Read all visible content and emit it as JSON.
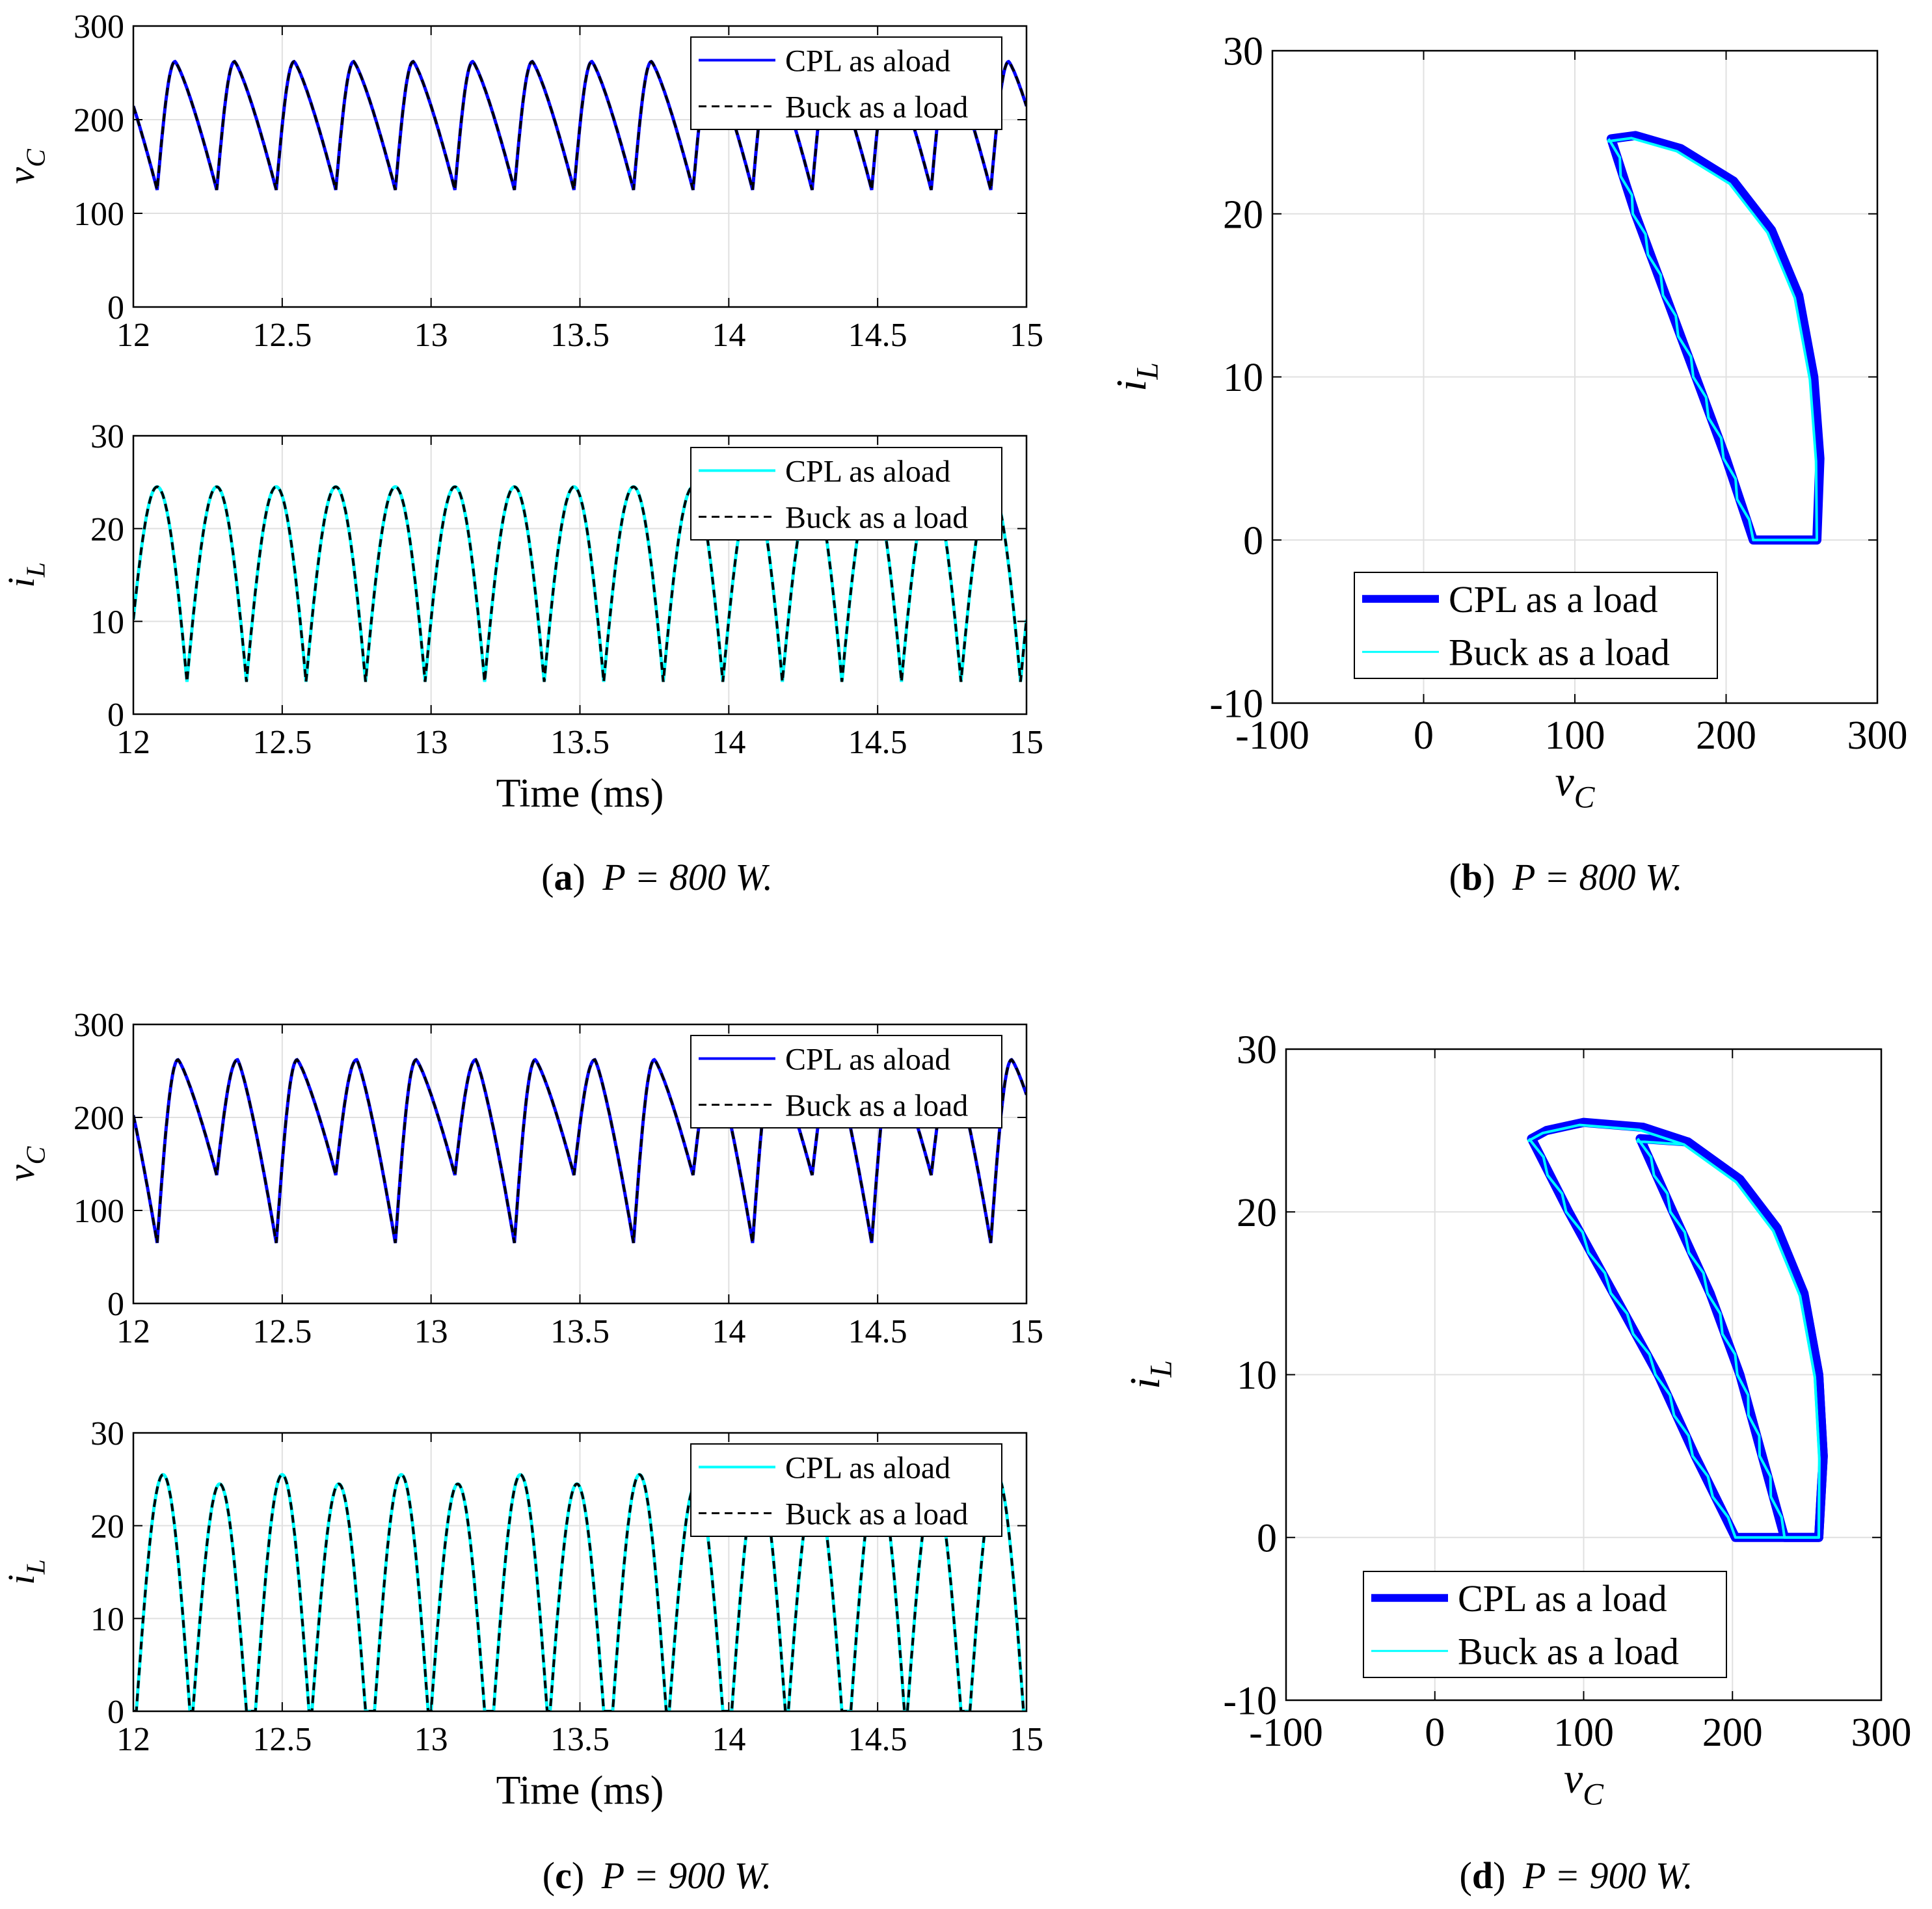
{
  "colors": {
    "blue": "#0000ff",
    "cyan": "#00ffff",
    "black": "#000000",
    "grid": "#e0e0e0",
    "axis": "#000000"
  },
  "panels": [
    {
      "label": "a",
      "caption_rest": "P = 800 W."
    },
    {
      "label": "b",
      "caption_rest": "P = 800 W."
    },
    {
      "label": "c",
      "caption_rest": "P = 900 W."
    },
    {
      "label": "d",
      "caption_rest": "P = 900 W."
    }
  ],
  "chart_data": [
    {
      "id": "a-vc",
      "panel": "a",
      "type": "line",
      "ylabel": "v_C",
      "xlabel": "",
      "xlim": [
        12,
        15
      ],
      "ylim": [
        0,
        300
      ],
      "xticks": [
        "12",
        "12.5",
        "13",
        "13.5",
        "14",
        "14.5",
        "15"
      ],
      "yticks": [
        "0",
        "100",
        "200",
        "300"
      ],
      "grid": true,
      "legend_position": "top-right",
      "waveform": {
        "kind": "vc",
        "period": 0.2,
        "tmin": 12.08,
        "min": 125,
        "max": 262,
        "t0": 12.0,
        "v0": 218,
        "rise": 0.06
      },
      "series": [
        {
          "name": "CPL as aload",
          "color": "#0000ff",
          "style": "solid"
        },
        {
          "name": "Buck  as a load",
          "color": "#000000",
          "style": "dashed"
        }
      ]
    },
    {
      "id": "a-il",
      "panel": "a",
      "type": "line",
      "ylabel": "i_L",
      "xlabel": "Time (ms)",
      "xlim": [
        12,
        15
      ],
      "ylim": [
        0,
        30
      ],
      "xticks": [
        "12",
        "12.5",
        "13",
        "13.5",
        "14",
        "14.5",
        "15"
      ],
      "yticks": [
        "0",
        "10",
        "20",
        "30"
      ],
      "grid": true,
      "legend_position": "top-right",
      "waveform": {
        "kind": "il",
        "period": 0.2,
        "tpeak": 12.08,
        "peak": 24.5,
        "half_width": 0.11
      },
      "series": [
        {
          "name": "CPL as aload",
          "color": "#00ffff",
          "style": "solid"
        },
        {
          "name": "Buck  as a load",
          "color": "#000000",
          "style": "dashed"
        }
      ]
    },
    {
      "id": "b-phase",
      "panel": "b",
      "type": "line",
      "xlabel": "v_C",
      "ylabel": "i_L",
      "xlim": [
        -100,
        300
      ],
      "ylim": [
        -10,
        30
      ],
      "xticks": [
        "-100",
        "0",
        "100",
        "200",
        "300"
      ],
      "yticks": [
        "-10",
        "0",
        "10",
        "20",
        "30"
      ],
      "grid": true,
      "legend_position": "bottom-left",
      "loops": [
        {
          "inner": [
            [
              124,
              24.6
            ],
            [
              140,
              20
            ],
            [
              160,
              15
            ],
            [
              180,
              10
            ],
            [
              200,
              5
            ],
            [
              218,
              0
            ]
          ],
          "bottom": [
            [
              218,
              0
            ],
            [
              260,
              0
            ]
          ],
          "outer": [
            [
              260,
              0
            ],
            [
              262,
              5
            ],
            [
              258,
              10
            ],
            [
              248,
              15
            ],
            [
              230,
              19
            ],
            [
              205,
              22
            ],
            [
              170,
              24
            ],
            [
              140,
              24.8
            ],
            [
              124,
              24.6
            ]
          ]
        }
      ],
      "series": [
        {
          "name": "CPL as a load",
          "color": "#0000ff",
          "style": "solid-thick"
        },
        {
          "name": "Buck  as a load",
          "color": "#00ffff",
          "style": "solid-thin"
        }
      ]
    },
    {
      "id": "c-vc",
      "panel": "c",
      "type": "line",
      "ylabel": "v_C",
      "xlabel": "",
      "xlim": [
        12,
        15
      ],
      "ylim": [
        0,
        300
      ],
      "xticks": [
        "12",
        "12.5",
        "13",
        "13.5",
        "14",
        "14.5",
        "15"
      ],
      "yticks": [
        "0",
        "100",
        "200",
        "300"
      ],
      "grid": true,
      "legend_position": "top-right",
      "waveform": {
        "kind": "vc2",
        "period": 0.4,
        "tdeep": 12.08,
        "tshallow": 12.28,
        "deep": 65,
        "shallow": 138,
        "max": 262,
        "t0": 12.0,
        "v0": 205
      },
      "series": [
        {
          "name": "CPL as aload",
          "color": "#0000ff",
          "style": "solid"
        },
        {
          "name": "Buck  as a load",
          "color": "#000000",
          "style": "dashed"
        }
      ]
    },
    {
      "id": "c-il",
      "panel": "c",
      "type": "line",
      "ylabel": "i_L",
      "xlabel": "Time (ms)",
      "xlim": [
        12,
        15
      ],
      "ylim": [
        0,
        30
      ],
      "xticks": [
        "12",
        "12.5",
        "13",
        "13.5",
        "14",
        "14.5",
        "15"
      ],
      "yticks": [
        "0",
        "10",
        "20",
        "30"
      ],
      "grid": true,
      "legend_position": "top-right",
      "waveform": {
        "kind": "il2",
        "period": 0.4,
        "tpeak1": 12.1,
        "tpeak2": 12.29,
        "peak1": 25.5,
        "peak2": 24.5,
        "half_width": 0.09
      },
      "series": [
        {
          "name": "CPL as aload",
          "color": "#00ffff",
          "style": "solid"
        },
        {
          "name": "Buck  as a load",
          "color": "#000000",
          "style": "dashed"
        }
      ]
    },
    {
      "id": "d-phase",
      "panel": "d",
      "type": "line",
      "xlabel": "v_C",
      "ylabel": "i_L",
      "xlim": [
        -100,
        300
      ],
      "ylim": [
        -10,
        30
      ],
      "xticks": [
        "-100",
        "0",
        "100",
        "200",
        "300"
      ],
      "yticks": [
        "-10",
        "0",
        "10",
        "20",
        "30"
      ],
      "grid": true,
      "legend_position": "bottom-left",
      "loops": [
        {
          "inner": [
            [
              65,
              24.5
            ],
            [
              90,
              20
            ],
            [
              120,
              15
            ],
            [
              150,
              10
            ],
            [
              175,
              5
            ],
            [
              202,
              0
            ]
          ],
          "bottom": [
            [
              202,
              0
            ],
            [
              258,
              0
            ]
          ],
          "outer": [
            [
              258,
              0
            ],
            [
              261,
              5
            ],
            [
              258,
              10
            ],
            [
              248,
              15
            ],
            [
              230,
              19
            ],
            [
              205,
              22
            ],
            [
              170,
              24.3
            ],
            [
              140,
              25.2
            ],
            [
              100,
              25.5
            ],
            [
              75,
              25
            ],
            [
              65,
              24.5
            ]
          ]
        },
        {
          "inner": [
            [
              138,
              24.5
            ],
            [
              160,
              20
            ],
            [
              185,
              15
            ],
            [
              205,
              10
            ],
            [
              220,
              5
            ],
            [
              235,
              0
            ]
          ],
          "bottom": [
            [
              235,
              0
            ],
            [
              258,
              0
            ]
          ],
          "outer": [
            [
              258,
              0
            ],
            [
              261,
              5
            ],
            [
              258,
              10
            ],
            [
              248,
              15
            ],
            [
              230,
              19
            ],
            [
              205,
              22
            ],
            [
              170,
              24.3
            ],
            [
              138,
              24.5
            ]
          ]
        }
      ],
      "series": [
        {
          "name": "CPL as a load",
          "color": "#0000ff",
          "style": "solid-thick"
        },
        {
          "name": "Buck  as a load",
          "color": "#00ffff",
          "style": "solid-thin"
        }
      ]
    }
  ]
}
